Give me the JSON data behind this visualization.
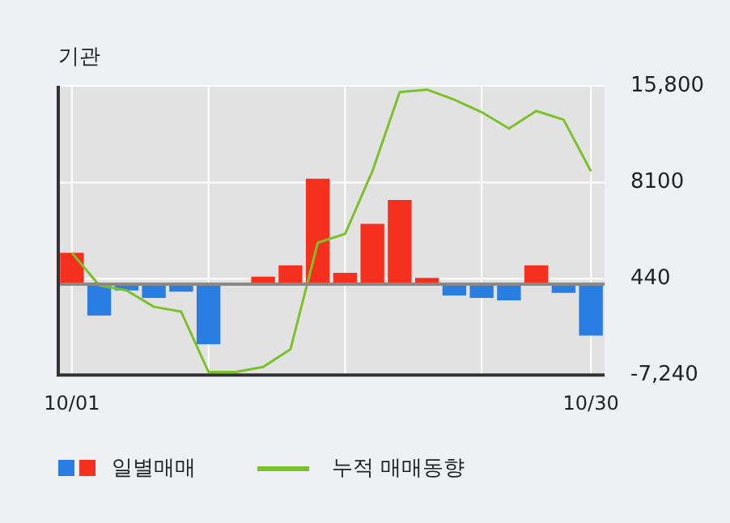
{
  "chart_data": {
    "type": "bar",
    "title": "기관",
    "categories": [
      "10/01",
      null,
      null,
      null,
      null,
      null,
      null,
      null,
      null,
      null,
      null,
      null,
      null,
      null,
      null,
      null,
      null,
      null,
      null,
      "10/30"
    ],
    "series": [
      {
        "name": "일별매매",
        "colors": [
          "#f5301e",
          "#2a7de1",
          "#2a7de1",
          "#2a7de1",
          "#2a7de1",
          "#2a7de1",
          "#f5301e",
          "#f5301e",
          "#f5301e",
          "#f5301e",
          "#f5301e",
          "#f5301e",
          "#f5301e",
          "#f5301e",
          "#2a7de1",
          "#2a7de1",
          "#2a7de1",
          "#f5301e",
          "#2a7de1",
          "#2a7de1"
        ],
        "values": [
          2500,
          -2500,
          -500,
          -1100,
          -600,
          -4800,
          0,
          600,
          1500,
          8400,
          900,
          4800,
          6700,
          500,
          -900,
          -1100,
          -1300,
          1500,
          -700,
          -4100
        ]
      },
      {
        "name": "누적 매매동향",
        "type": "line",
        "color": "#7bc12a",
        "values": [
          2500,
          -100,
          -500,
          -1800,
          -2200,
          -7000,
          -7000,
          -6600,
          -5200,
          3300,
          4000,
          9000,
          15300,
          15500,
          14700,
          13700,
          12400,
          13800,
          13100,
          9000
        ]
      }
    ],
    "ylim": [
      -7240,
      15800
    ],
    "yticks": [
      {
        "value": 15800,
        "label": "15,800"
      },
      8100,
      440,
      {
        "value": -7240,
        "label": "-7,240"
      }
    ],
    "grid": true,
    "legend": "bottom",
    "marker": "none",
    "line_style": "solid"
  }
}
